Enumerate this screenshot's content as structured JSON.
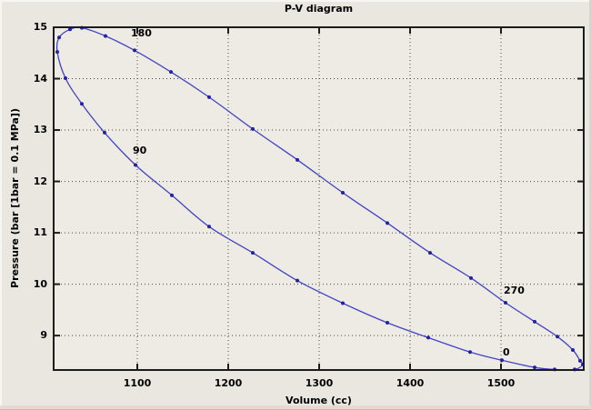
{
  "figure": {
    "background": "#e9e7e0",
    "plot_background": "#edebe4",
    "frame_color": "#1c1c1c",
    "grid_color": "#4a4a4a",
    "text_color": "#000000"
  },
  "chart_data": {
    "type": "line",
    "title": "P-V diagram",
    "xlabel": "Volume (cc)",
    "ylabel": "Pressure (bar [1bar = 0.1 MPa])",
    "xlim": [
      1008,
      1591
    ],
    "ylim": [
      8.33,
      15.0
    ],
    "xticks": [
      1100,
      1200,
      1300,
      1400,
      1500
    ],
    "yticks": [
      9,
      10,
      11,
      12,
      13,
      14,
      15
    ],
    "grid": "dotted",
    "legend": false,
    "series": [
      {
        "color": "#4444c4",
        "marker": "dot",
        "marker_color": "#2222a2",
        "closed": true,
        "points": [
          [
            1501,
            8.52
          ],
          [
            1466,
            8.68
          ],
          [
            1420,
            8.96
          ],
          [
            1375,
            9.25
          ],
          [
            1326,
            9.63
          ],
          [
            1276,
            10.07
          ],
          [
            1227,
            10.61
          ],
          [
            1179,
            11.12
          ],
          [
            1138,
            11.73
          ],
          [
            1098,
            12.32
          ],
          [
            1064,
            12.95
          ],
          [
            1039,
            13.51
          ],
          [
            1021,
            14.01
          ],
          [
            1012,
            14.52
          ],
          [
            1014,
            14.8
          ],
          [
            1026,
            14.96
          ],
          [
            1039,
            14.99
          ],
          [
            1065,
            14.83
          ],
          [
            1097,
            14.55
          ],
          [
            1137,
            14.13
          ],
          [
            1179,
            13.64
          ],
          [
            1227,
            13.02
          ],
          [
            1276,
            12.42
          ],
          [
            1326,
            11.78
          ],
          [
            1375,
            11.19
          ],
          [
            1422,
            10.61
          ],
          [
            1467,
            10.12
          ],
          [
            1505,
            9.64
          ],
          [
            1537,
            9.27
          ],
          [
            1562,
            8.98
          ],
          [
            1579,
            8.72
          ],
          [
            1587,
            8.51
          ],
          [
            1590,
            8.44
          ],
          [
            1581,
            8.34
          ],
          [
            1559,
            8.34
          ],
          [
            1537,
            8.38
          ]
        ]
      }
    ],
    "annotations": [
      {
        "text": "0",
        "x": 1503,
        "y": 8.67
      },
      {
        "text": "90",
        "x": 1096,
        "y": 12.59
      },
      {
        "text": "180",
        "x": 1094,
        "y": 14.88
      },
      {
        "text": "270",
        "x": 1504,
        "y": 9.87
      }
    ]
  }
}
